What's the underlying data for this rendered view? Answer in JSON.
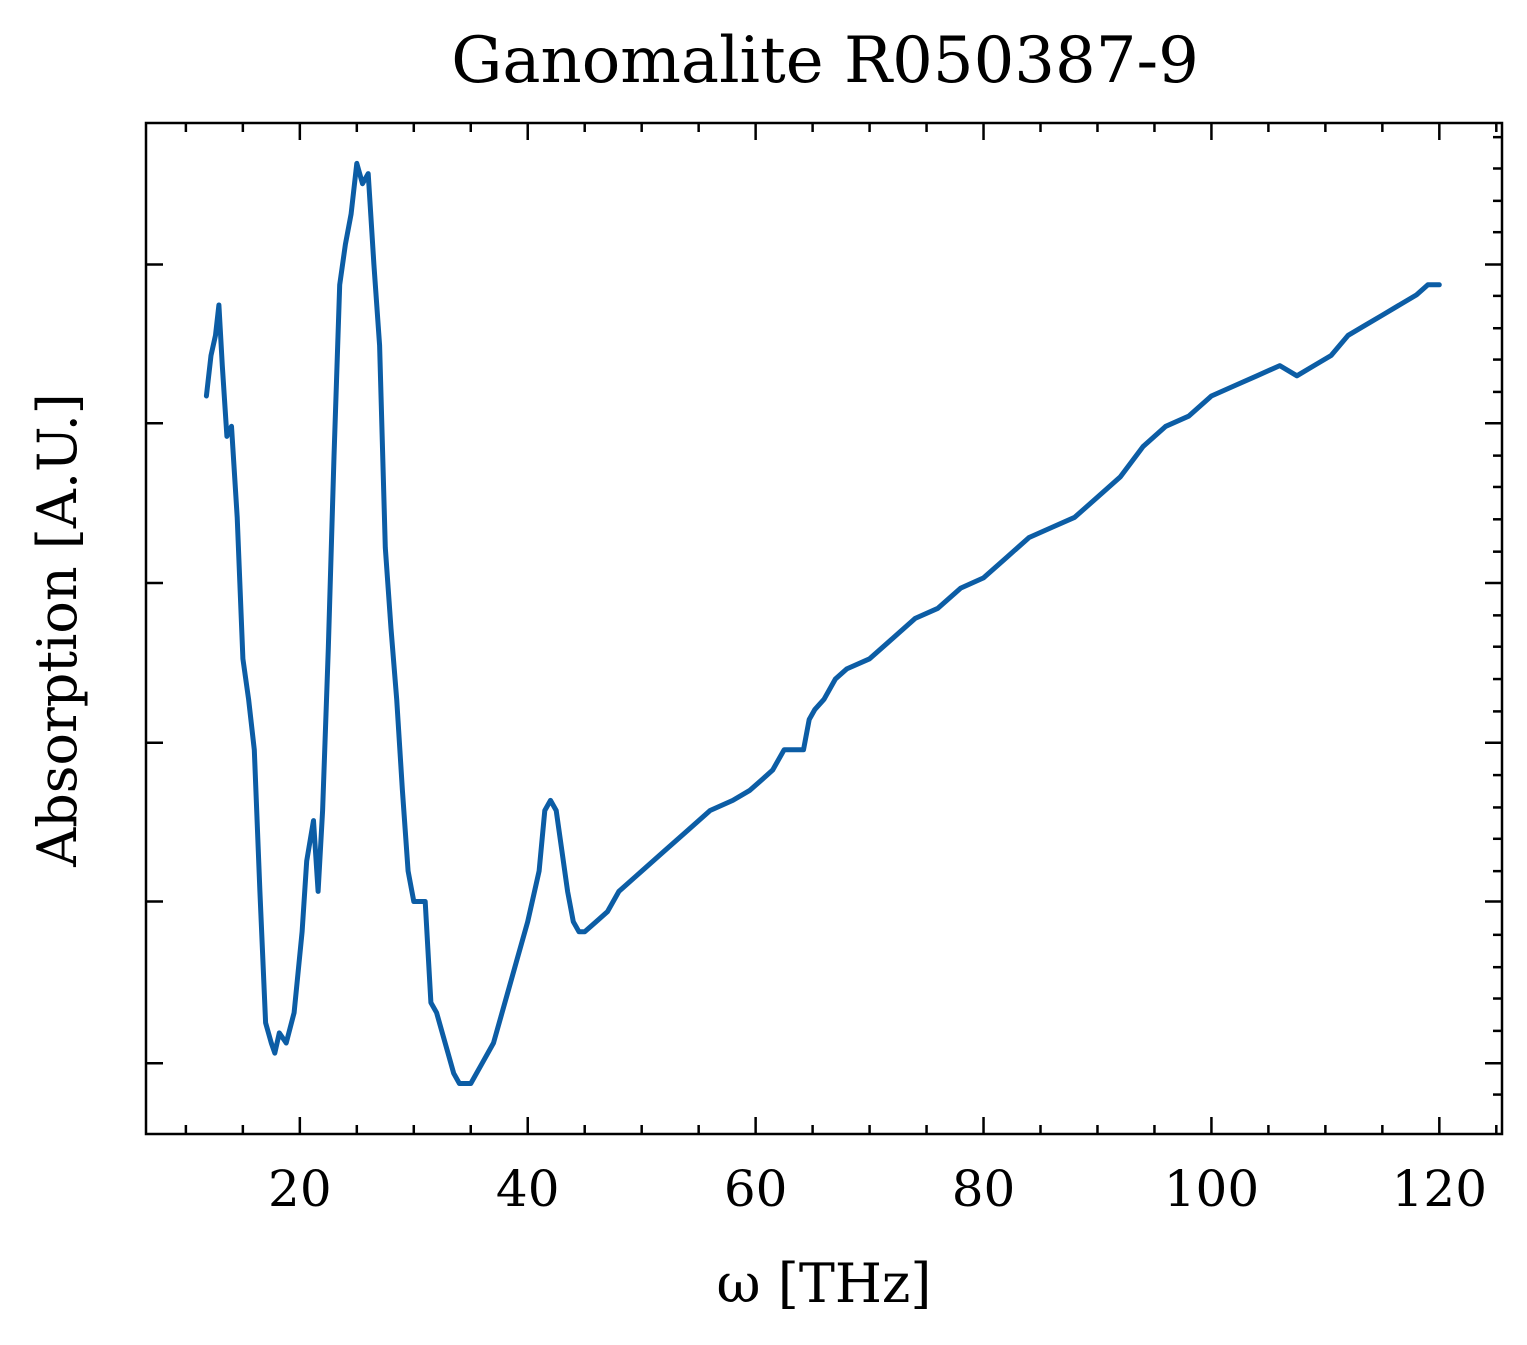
{
  "chart_data": {
    "type": "line",
    "title": "Ganomalite R050387-9",
    "xlabel": "ω [THz]",
    "ylabel": "Absorption [A.U.]",
    "xlim": [
      6.5,
      125.5
    ],
    "ylim": [
      0.0,
      1.0
    ],
    "x_ticks": [
      20,
      40,
      60,
      80,
      100,
      120
    ],
    "x_minor_ticks": [
      10,
      15,
      25,
      30,
      35,
      45,
      50,
      55,
      65,
      70,
      75,
      85,
      90,
      95,
      105,
      110,
      115,
      125
    ],
    "y_major_ticks": [
      0.07,
      0.23,
      0.387,
      0.545,
      0.703,
      0.86
    ],
    "y_minor_ticks": [
      0.039,
      0.102,
      0.134,
      0.165,
      0.197,
      0.26,
      0.292,
      0.323,
      0.355,
      0.418,
      0.45,
      0.482,
      0.513,
      0.576,
      0.608,
      0.64,
      0.671,
      0.734,
      0.766,
      0.797,
      0.829,
      0.892,
      0.923,
      0.955,
      0.986
    ],
    "grid": false,
    "color": "#0c5da5",
    "series": [
      {
        "x": [
          11.8,
          12.2,
          12.6,
          12.9,
          13.2,
          13.6,
          14.0,
          14.5,
          15.0,
          15.5,
          16.0,
          16.5,
          17.0,
          17.5,
          17.8,
          18.2,
          18.8,
          19.5,
          20.2,
          20.6,
          21.2,
          21.6,
          22.0,
          22.5,
          23.0,
          23.5,
          24.0,
          24.5,
          25.0,
          25.5,
          26.0,
          26.5,
          27.0,
          27.5,
          28.0,
          28.5,
          29.0,
          29.5,
          30.0,
          30.5,
          31.0,
          31.5,
          32.0,
          32.5,
          33.0,
          33.5,
          34.0,
          34.5,
          35.0,
          36.0,
          37.0,
          38.0,
          39.0,
          40.0,
          41.0,
          41.5,
          42.0,
          42.5,
          43.0,
          43.5,
          44.0,
          44.5,
          45.0,
          46.0,
          47.0,
          48.0,
          50.0,
          52.0,
          54.0,
          56.0,
          58.0,
          59.5,
          60.5,
          61.5,
          62.5,
          63.5,
          64.2,
          64.7,
          65.2,
          66.0,
          67.0,
          68.0,
          70.0,
          72.0,
          74.0,
          76.0,
          78.0,
          80.0,
          82.0,
          84.0,
          86.0,
          88.0,
          90.0,
          92.0,
          94.0,
          96.0,
          98.0,
          100.0,
          102.0,
          104.0,
          106.0,
          107.5,
          109.0,
          110.5,
          112.0,
          113.5,
          115.0,
          116.5,
          118.0,
          119.0,
          119.7,
          120.0
        ],
        "y": [
          0.73,
          0.77,
          0.79,
          0.82,
          0.76,
          0.69,
          0.7,
          0.61,
          0.47,
          0.43,
          0.38,
          0.24,
          0.11,
          0.09,
          0.08,
          0.1,
          0.09,
          0.12,
          0.2,
          0.27,
          0.31,
          0.24,
          0.32,
          0.48,
          0.67,
          0.84,
          0.88,
          0.91,
          0.96,
          0.94,
          0.95,
          0.86,
          0.78,
          0.58,
          0.5,
          0.43,
          0.34,
          0.26,
          0.23,
          0.23,
          0.23,
          0.13,
          0.12,
          0.1,
          0.08,
          0.06,
          0.05,
          0.05,
          0.05,
          0.07,
          0.09,
          0.13,
          0.17,
          0.21,
          0.26,
          0.32,
          0.33,
          0.32,
          0.28,
          0.24,
          0.21,
          0.2,
          0.2,
          0.21,
          0.22,
          0.24,
          0.26,
          0.28,
          0.3,
          0.32,
          0.33,
          0.34,
          0.35,
          0.36,
          0.38,
          0.38,
          0.38,
          0.41,
          0.42,
          0.43,
          0.45,
          0.46,
          0.47,
          0.49,
          0.51,
          0.52,
          0.54,
          0.55,
          0.57,
          0.59,
          0.6,
          0.61,
          0.63,
          0.65,
          0.68,
          0.7,
          0.71,
          0.73,
          0.74,
          0.75,
          0.76,
          0.75,
          0.76,
          0.77,
          0.79,
          0.8,
          0.81,
          0.82,
          0.83,
          0.84,
          0.84,
          0.84
        ]
      }
    ]
  }
}
